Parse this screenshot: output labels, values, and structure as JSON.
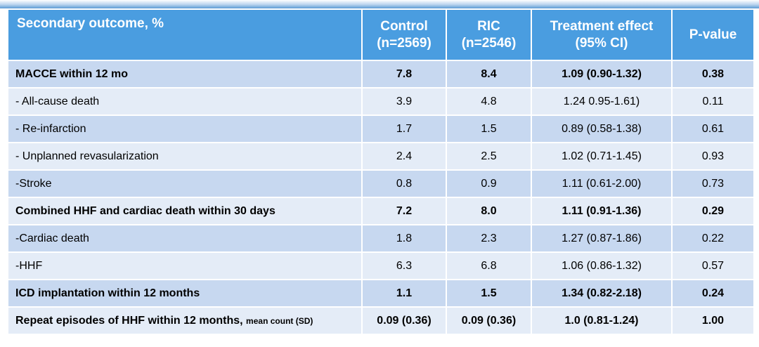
{
  "header": {
    "outcome": "Secondary outcome, %",
    "control_line1": "Control",
    "control_line2": "(n=2569)",
    "ric_line1": "RIC",
    "ric_line2": "(n=2546)",
    "effect_line1": "Treatment effect",
    "effect_line2": "(95% CI)",
    "pvalue": "P-value"
  },
  "rows": [
    {
      "label": "MACCE within 12 mo",
      "note": "",
      "control": "7.8",
      "ric": "8.4",
      "effect": "1.09 (0.90-1.32)",
      "p": "0.38"
    },
    {
      "label": "- All-cause death",
      "note": "",
      "control": "3.9",
      "ric": "4.8",
      "effect": "1.24 0.95-1.61)",
      "p": "0.11"
    },
    {
      "label": "- Re-infarction",
      "note": "",
      "control": "1.7",
      "ric": "1.5",
      "effect": "0.89 (0.58-1.38)",
      "p": "0.61"
    },
    {
      "label": "- Unplanned revasularization",
      "note": "",
      "control": "2.4",
      "ric": "2.5",
      "effect": "1.02 (0.71-1.45)",
      "p": "0.93"
    },
    {
      "label": "-Stroke",
      "note": "",
      "control": "0.8",
      "ric": "0.9",
      "effect": "1.11 (0.61-2.00)",
      "p": "0.73"
    },
    {
      "label": "Combined HHF and cardiac death within 30 days",
      "note": "",
      "control": "7.2",
      "ric": "8.0",
      "effect": "1.11 (0.91-1.36)",
      "p": "0.29"
    },
    {
      "label": "-Cardiac death",
      "note": "",
      "control": "1.8",
      "ric": "2.3",
      "effect": "1.27 (0.87-1.86)",
      "p": "0.22"
    },
    {
      "label": "-HHF",
      "note": "",
      "control": "6.3",
      "ric": "6.8",
      "effect": "1.06 (0.86-1.32)",
      "p": "0.57"
    },
    {
      "label": "ICD implantation within 12 months",
      "note": "",
      "control": "1.1",
      "ric": "1.5",
      "effect": "1.34 (0.82-2.18)",
      "p": "0.24"
    },
    {
      "label": "Repeat episodes of HHF within 12 months,",
      "note": "mean count (SD)",
      "control": "0.09 (0.36)",
      "ric": "0.09 (0.36)",
      "effect": "1.0 (0.81-1.24)",
      "p": "1.00"
    }
  ],
  "colors": {
    "header_bg": "#4a9de0",
    "row_dark": "#c7d8f0",
    "row_light": "#e4ecf7"
  }
}
